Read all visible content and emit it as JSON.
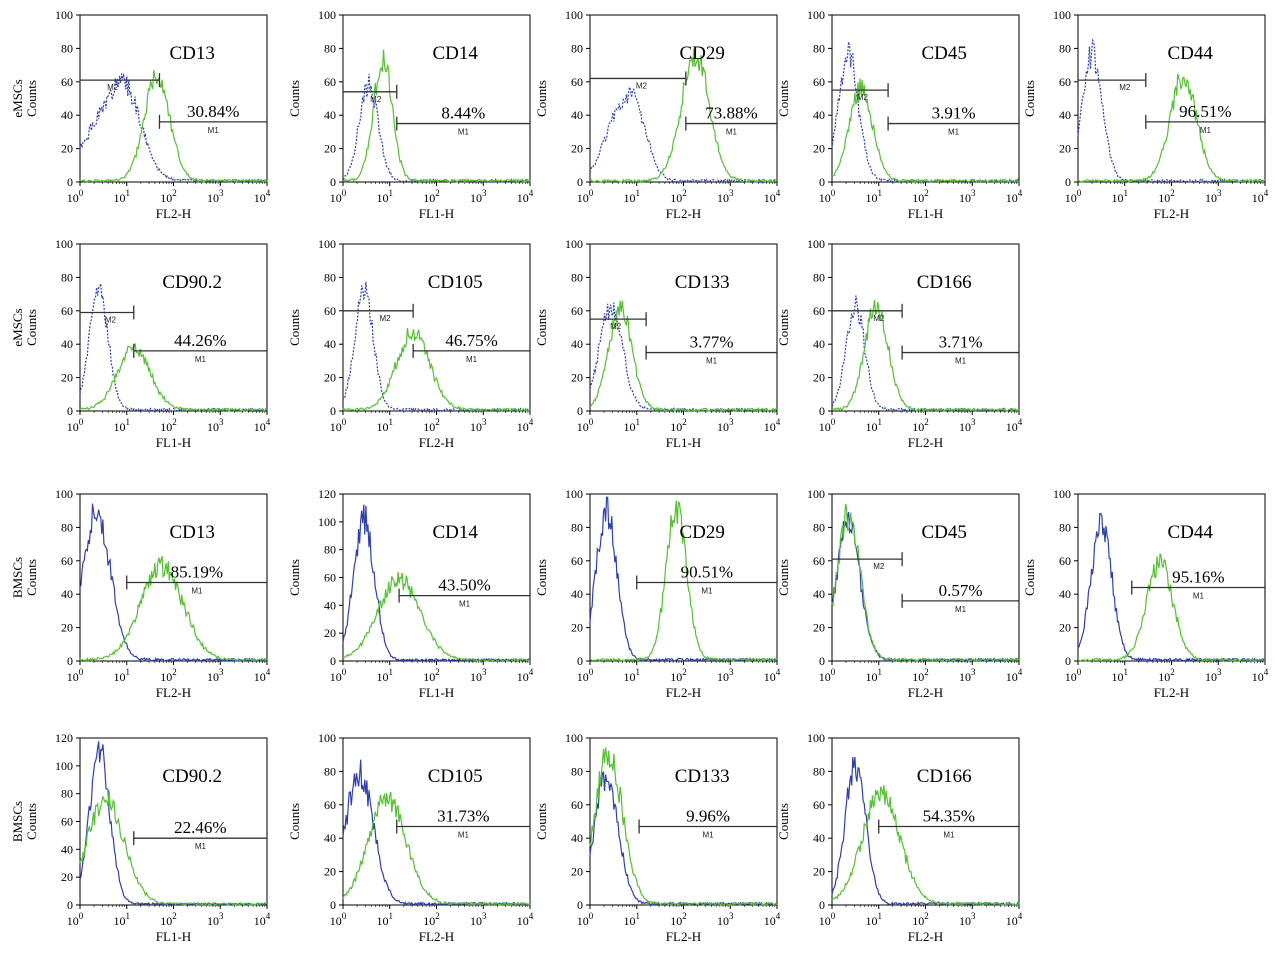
{
  "figure": {
    "axis_note": "x axis log scale 10^0-10^4; isotype control curve blue, antibody stained curve green"
  },
  "chart_data": [
    {
      "row": 0,
      "col": 0,
      "title": "CD13",
      "percent": "30.84%",
      "gates": [
        "M1",
        "M2"
      ],
      "ylabel_group": "eMSCs",
      "ylabel": "Counts",
      "xlabel": "FL2-H",
      "ylim": [
        0,
        100
      ],
      "yticks": [
        0,
        20,
        40,
        60,
        80,
        100
      ],
      "dashed": true,
      "m1": {
        "start": 1.7,
        "y": 36
      },
      "m2": {
        "start": 0,
        "end": 1.7,
        "y": 61
      },
      "m2_label_at": 0.7,
      "series": [
        {
          "color": "#2f3fb5",
          "peaks": [
            {
              "c": 0.6,
              "h": 40,
              "w": 0.5
            },
            {
              "c": 1.05,
              "h": 30,
              "w": 0.3
            }
          ]
        },
        {
          "color": "#55c230",
          "peaks": [
            {
              "c": 1.65,
              "h": 66,
              "w": 0.27
            }
          ]
        }
      ]
    },
    {
      "row": 0,
      "col": 1,
      "title": "CD14",
      "percent": "8.44%",
      "gates": [
        "M1",
        "M2"
      ],
      "ylabel_group": "",
      "ylabel": "Counts",
      "xlabel": "FL1-H",
      "ylim": [
        0,
        100
      ],
      "yticks": [
        0,
        20,
        40,
        60,
        80,
        100
      ],
      "dashed": true,
      "m1": {
        "start": 1.15,
        "y": 35
      },
      "m2": {
        "start": 0,
        "end": 1.15,
        "y": 54
      },
      "m2_label_at": 0.7,
      "series": [
        {
          "color": "#2f3fb5",
          "peaks": [
            {
              "c": 0.55,
              "h": 60,
              "w": 0.2
            }
          ]
        },
        {
          "color": "#55c230",
          "peaks": [
            {
              "c": 0.85,
              "h": 76,
              "w": 0.2
            }
          ]
        }
      ]
    },
    {
      "row": 0,
      "col": 2,
      "title": "CD29",
      "percent": "73.88%",
      "gates": [
        "M1",
        "M2"
      ],
      "ylabel_group": "",
      "ylabel": "Counts",
      "xlabel": "FL2-H",
      "ylim": [
        0,
        100
      ],
      "yticks": [
        0,
        20,
        40,
        60,
        80,
        100
      ],
      "dashed": true,
      "m1": {
        "start": 2.05,
        "y": 35
      },
      "m2": {
        "start": 0,
        "end": 2.05,
        "y": 62
      },
      "m2_label_at": 1.1,
      "series": [
        {
          "color": "#2f3fb5",
          "peaks": [
            {
              "c": 0.55,
              "h": 34,
              "w": 0.3
            },
            {
              "c": 1.0,
              "h": 38,
              "w": 0.25
            }
          ]
        },
        {
          "color": "#55c230",
          "peaks": [
            {
              "c": 2.25,
              "h": 78,
              "w": 0.3
            }
          ]
        }
      ]
    },
    {
      "row": 0,
      "col": 3,
      "title": "CD45",
      "percent": "3.91%",
      "gates": [
        "M1",
        "M2"
      ],
      "ylabel_group": "",
      "ylabel": "Counts",
      "xlabel": "FL1-H",
      "ylim": [
        0,
        100
      ],
      "yticks": [
        0,
        20,
        40,
        60,
        80,
        100
      ],
      "dashed": true,
      "m1": {
        "start": 1.2,
        "y": 35
      },
      "m2": {
        "start": 0,
        "end": 1.2,
        "y": 55
      },
      "m2_label_at": 0.65,
      "series": [
        {
          "color": "#2f3fb5",
          "peaks": [
            {
              "c": 0.35,
              "h": 78,
              "w": 0.22
            }
          ]
        },
        {
          "color": "#55c230",
          "peaks": [
            {
              "c": 0.62,
              "h": 57,
              "w": 0.25
            }
          ]
        }
      ]
    },
    {
      "row": 0,
      "col": 4,
      "title": "CD44",
      "percent": "96.51%",
      "gates": [
        "M1",
        "M2"
      ],
      "ylabel_group": "",
      "ylabel": "Counts",
      "xlabel": "FL2-H",
      "ylim": [
        0,
        100
      ],
      "yticks": [
        0,
        20,
        40,
        60,
        80,
        100
      ],
      "dashed": true,
      "m1": {
        "start": 1.45,
        "y": 36
      },
      "m2": {
        "start": 0,
        "end": 1.45,
        "y": 61
      },
      "m2_label_at": 1.0,
      "series": [
        {
          "color": "#2f3fb5",
          "peaks": [
            {
              "c": 0.3,
              "h": 78,
              "w": 0.22
            }
          ]
        },
        {
          "color": "#55c230",
          "peaks": [
            {
              "c": 2.25,
              "h": 65,
              "w": 0.28
            }
          ]
        }
      ]
    },
    {
      "row": 1,
      "col": 0,
      "title": "CD90.2",
      "percent": "44.26%",
      "gates": [
        "M1",
        "M2"
      ],
      "ylabel_group": "eMSCs",
      "ylabel": "Counts",
      "xlabel": "FL1-H",
      "ylim": [
        0,
        100
      ],
      "yticks": [
        0,
        20,
        40,
        60,
        80,
        100
      ],
      "dashed": true,
      "m1": {
        "start": 1.15,
        "y": 36
      },
      "m2": {
        "start": 0,
        "end": 1.15,
        "y": 59
      },
      "m2_label_at": 0.65,
      "series": [
        {
          "color": "#2f3fb5",
          "peaks": [
            {
              "c": 0.4,
              "h": 74,
              "w": 0.2
            }
          ]
        },
        {
          "color": "#55c230",
          "peaks": [
            {
              "c": 1.15,
              "h": 38,
              "w": 0.35
            }
          ]
        }
      ]
    },
    {
      "row": 1,
      "col": 1,
      "title": "CD105",
      "percent": "46.75%",
      "gates": [
        "M1",
        "M2"
      ],
      "ylabel_group": "",
      "ylabel": "Counts",
      "xlabel": "FL2-H",
      "ylim": [
        0,
        100
      ],
      "yticks": [
        0,
        20,
        40,
        60,
        80,
        100
      ],
      "dashed": true,
      "m1": {
        "start": 1.5,
        "y": 36
      },
      "m2": {
        "start": 0,
        "end": 1.5,
        "y": 60
      },
      "m2_label_at": 0.9,
      "series": [
        {
          "color": "#2f3fb5",
          "peaks": [
            {
              "c": 0.45,
              "h": 73,
              "w": 0.2
            }
          ]
        },
        {
          "color": "#55c230",
          "peaks": [
            {
              "c": 1.5,
              "h": 48,
              "w": 0.35
            }
          ]
        }
      ]
    },
    {
      "row": 1,
      "col": 2,
      "title": "CD133",
      "percent": "3.77%",
      "gates": [
        "M1",
        "M2"
      ],
      "ylabel_group": "",
      "ylabel": "Counts",
      "xlabel": "FL1-H",
      "ylim": [
        0,
        100
      ],
      "yticks": [
        0,
        20,
        40,
        60,
        80,
        100
      ],
      "dashed": true,
      "m1": {
        "start": 1.2,
        "y": 35
      },
      "m2": {
        "start": 0,
        "end": 1.2,
        "y": 55
      },
      "m2_label_at": 0.55,
      "series": [
        {
          "color": "#2f3fb5",
          "peaks": [
            {
              "c": 0.45,
              "h": 63,
              "w": 0.25
            }
          ]
        },
        {
          "color": "#55c230",
          "peaks": [
            {
              "c": 0.65,
              "h": 62,
              "w": 0.25
            }
          ]
        }
      ]
    },
    {
      "row": 1,
      "col": 3,
      "title": "CD166",
      "percent": "3.71%",
      "gates": [
        "M1",
        "M2"
      ],
      "ylabel_group": "",
      "ylabel": "Counts",
      "xlabel": "FL2-H",
      "ylim": [
        0,
        100
      ],
      "yticks": [
        0,
        20,
        40,
        60,
        80,
        100
      ],
      "dashed": true,
      "m1": {
        "start": 1.5,
        "y": 35
      },
      "m2": {
        "start": 0,
        "end": 1.5,
        "y": 60
      },
      "m2_label_at": 1.0,
      "series": [
        {
          "color": "#2f3fb5",
          "peaks": [
            {
              "c": 0.5,
              "h": 64,
              "w": 0.2
            }
          ]
        },
        {
          "color": "#55c230",
          "peaks": [
            {
              "c": 0.95,
              "h": 65,
              "w": 0.25
            }
          ]
        }
      ]
    },
    {
      "row": 2,
      "col": 0,
      "title": "CD13",
      "percent": "85.19%",
      "gates": [
        "M1"
      ],
      "ylabel_group": "BMSCs",
      "ylabel": "Counts",
      "xlabel": "FL2-H",
      "ylim": [
        0,
        100
      ],
      "yticks": [
        0,
        20,
        40,
        60,
        80,
        100
      ],
      "dashed": false,
      "m1": {
        "start": 1.0,
        "y": 47
      },
      "m2": null,
      "series": [
        {
          "color": "#2f3fb5",
          "peaks": [
            {
              "c": 0.35,
              "h": 92,
              "w": 0.3
            }
          ]
        },
        {
          "color": "#55c230",
          "peaks": [
            {
              "c": 1.75,
              "h": 58,
              "w": 0.45
            }
          ]
        }
      ]
    },
    {
      "row": 2,
      "col": 1,
      "title": "CD14",
      "percent": "43.50%",
      "gates": [
        "M1"
      ],
      "ylabel_group": "",
      "ylabel": "Counts",
      "xlabel": "FL1-H",
      "ylim": [
        0,
        120
      ],
      "yticks": [
        0,
        20,
        40,
        60,
        80,
        100,
        120
      ],
      "dashed": false,
      "m1": {
        "start": 1.2,
        "y": 47
      },
      "m2": null,
      "series": [
        {
          "color": "#2f3fb5",
          "peaks": [
            {
              "c": 0.45,
              "h": 105,
              "w": 0.22
            }
          ]
        },
        {
          "color": "#55c230",
          "peaks": [
            {
              "c": 1.2,
              "h": 60,
              "w": 0.45
            }
          ]
        }
      ]
    },
    {
      "row": 2,
      "col": 2,
      "title": "CD29",
      "percent": "90.51%",
      "gates": [
        "M1"
      ],
      "ylabel_group": "",
      "ylabel": "Counts",
      "xlabel": "FL2-H",
      "ylim": [
        0,
        100
      ],
      "yticks": [
        0,
        20,
        40,
        60,
        80,
        100
      ],
      "dashed": false,
      "m1": {
        "start": 1.0,
        "y": 47
      },
      "m2": null,
      "series": [
        {
          "color": "#2f3fb5",
          "peaks": [
            {
              "c": 0.35,
              "h": 92,
              "w": 0.22
            }
          ]
        },
        {
          "color": "#55c230",
          "peaks": [
            {
              "c": 1.85,
              "h": 92,
              "w": 0.22
            }
          ]
        }
      ]
    },
    {
      "row": 2,
      "col": 3,
      "title": "CD45",
      "percent": "0.57%",
      "gates": [
        "M1",
        "M2"
      ],
      "ylabel_group": "",
      "ylabel": "Counts",
      "xlabel": "FL2-H",
      "ylim": [
        0,
        100
      ],
      "yticks": [
        0,
        20,
        40,
        60,
        80,
        100
      ],
      "dashed": false,
      "m1": {
        "start": 1.5,
        "y": 36
      },
      "m2": {
        "start": 0,
        "end": 1.5,
        "y": 61
      },
      "m2_label_at": 1.0,
      "series": [
        {
          "color": "#2f3fb5",
          "peaks": [
            {
              "c": 0.35,
              "h": 85,
              "w": 0.25
            }
          ]
        },
        {
          "color": "#55c230",
          "peaks": [
            {
              "c": 0.35,
              "h": 90,
              "w": 0.25
            }
          ]
        }
      ]
    },
    {
      "row": 2,
      "col": 4,
      "title": "CD44",
      "percent": "95.16%",
      "gates": [
        "M1"
      ],
      "ylabel_group": "",
      "ylabel": "Counts",
      "xlabel": "FL2-H",
      "ylim": [
        0,
        100
      ],
      "yticks": [
        0,
        20,
        40,
        60,
        80,
        100
      ],
      "dashed": false,
      "m1": {
        "start": 1.15,
        "y": 44
      },
      "m2": null,
      "series": [
        {
          "color": "#2f3fb5",
          "peaks": [
            {
              "c": 0.5,
              "h": 86,
              "w": 0.22
            }
          ]
        },
        {
          "color": "#55c230",
          "peaks": [
            {
              "c": 1.75,
              "h": 60,
              "w": 0.28
            }
          ]
        }
      ]
    },
    {
      "row": 3,
      "col": 0,
      "title": "CD90.2",
      "percent": "22.46%",
      "gates": [
        "M1"
      ],
      "ylabel_group": "BMSCs",
      "ylabel": "Counts",
      "xlabel": "FL1-H",
      "ylim": [
        0,
        120
      ],
      "yticks": [
        0,
        20,
        40,
        60,
        80,
        100,
        120
      ],
      "dashed": false,
      "m1": {
        "start": 1.15,
        "y": 48
      },
      "m2": null,
      "series": [
        {
          "color": "#2f3fb5",
          "peaks": [
            {
              "c": 0.42,
              "h": 112,
              "w": 0.22
            }
          ]
        },
        {
          "color": "#55c230",
          "peaks": [
            {
              "c": 0.55,
              "h": 77,
              "w": 0.4
            }
          ]
        }
      ]
    },
    {
      "row": 3,
      "col": 1,
      "title": "CD105",
      "percent": "31.73%",
      "gates": [
        "M1"
      ],
      "ylabel_group": "",
      "ylabel": "Counts",
      "xlabel": "FL2-H",
      "ylim": [
        0,
        100
      ],
      "yticks": [
        0,
        20,
        40,
        60,
        80,
        100
      ],
      "dashed": false,
      "m1": {
        "start": 1.15,
        "y": 47
      },
      "m2": null,
      "series": [
        {
          "color": "#2f3fb5",
          "peaks": [
            {
              "c": 0.35,
              "h": 80,
              "w": 0.3
            }
          ]
        },
        {
          "color": "#55c230",
          "peaks": [
            {
              "c": 0.95,
              "h": 65,
              "w": 0.4
            }
          ]
        }
      ]
    },
    {
      "row": 3,
      "col": 2,
      "title": "CD133",
      "percent": "9.96%",
      "gates": [
        "M1"
      ],
      "ylabel_group": "",
      "ylabel": "Counts",
      "xlabel": "FL2-H",
      "ylim": [
        0,
        100
      ],
      "yticks": [
        0,
        20,
        40,
        60,
        80,
        100
      ],
      "dashed": false,
      "m1": {
        "start": 1.05,
        "y": 47
      },
      "m2": null,
      "series": [
        {
          "color": "#2f3fb5",
          "peaks": [
            {
              "c": 0.35,
              "h": 80,
              "w": 0.25
            }
          ]
        },
        {
          "color": "#55c230",
          "peaks": [
            {
              "c": 0.4,
              "h": 92,
              "w": 0.3
            }
          ]
        }
      ]
    },
    {
      "row": 3,
      "col": 3,
      "title": "CD166",
      "percent": "54.35%",
      "gates": [
        "M1"
      ],
      "ylabel_group": "",
      "ylabel": "Counts",
      "xlabel": "FL2-H",
      "ylim": [
        0,
        100
      ],
      "yticks": [
        0,
        20,
        40,
        60,
        80,
        100
      ],
      "dashed": false,
      "m1": {
        "start": 1.0,
        "y": 47
      },
      "m2": null,
      "series": [
        {
          "color": "#2f3fb5",
          "peaks": [
            {
              "c": 0.5,
              "h": 86,
              "w": 0.22
            }
          ]
        },
        {
          "color": "#55c230",
          "peaks": [
            {
              "c": 1.05,
              "h": 68,
              "w": 0.4
            }
          ]
        }
      ]
    }
  ]
}
